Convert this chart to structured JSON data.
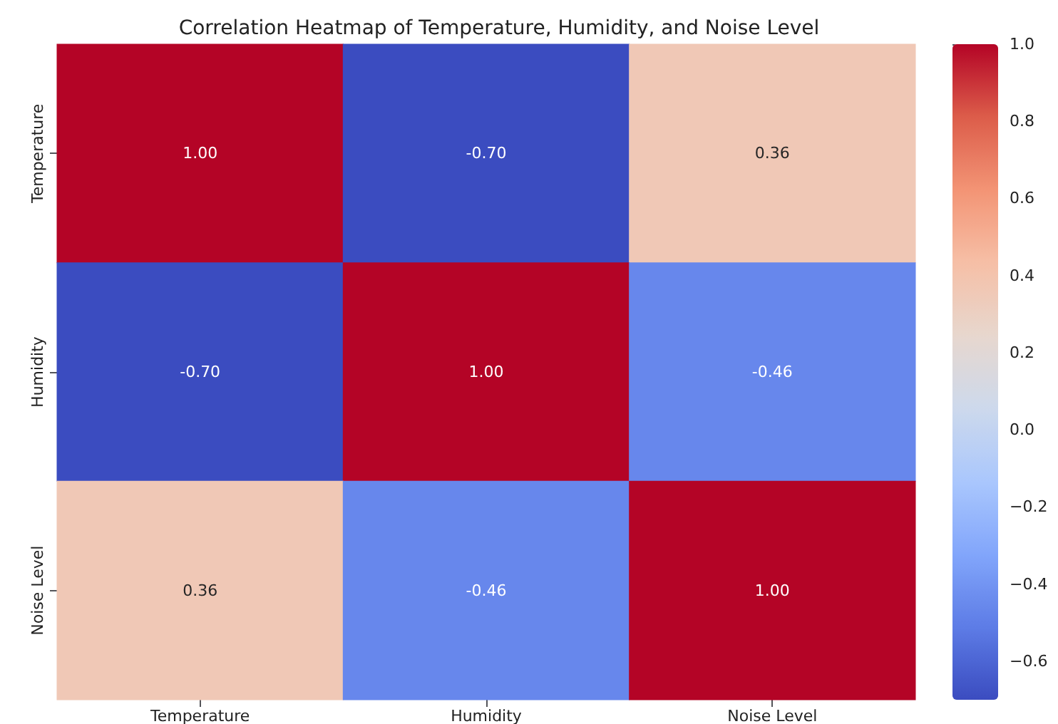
{
  "chart_data": {
    "type": "heatmap",
    "title": "Correlation Heatmap of Temperature, Humidity, and Noise Level",
    "categories": [
      "Temperature",
      "Humidity",
      "Noise Level"
    ],
    "y_categories": [
      "Temperature",
      "Humidity",
      "Noise Level"
    ],
    "cells": [
      [
        1.0,
        -0.7,
        0.36
      ],
      [
        -0.7,
        1.0,
        -0.46
      ],
      [
        0.36,
        -0.46,
        1.0
      ]
    ],
    "cell_labels": [
      [
        "1.00",
        "-0.70",
        "0.36"
      ],
      [
        "-0.70",
        "1.00",
        "-0.46"
      ],
      [
        "0.36",
        "-0.46",
        "1.00"
      ]
    ],
    "clim": [
      -0.7,
      1.0
    ],
    "cticks": [
      {
        "value": -0.6,
        "label": "−0.6"
      },
      {
        "value": -0.4,
        "label": "−0.4"
      },
      {
        "value": -0.2,
        "label": "−0.2"
      },
      {
        "value": 0.0,
        "label": "0.0"
      },
      {
        "value": 0.2,
        "label": "0.2"
      },
      {
        "value": 0.4,
        "label": "0.4"
      },
      {
        "value": 0.6,
        "label": "0.6"
      },
      {
        "value": 0.8,
        "label": "0.8"
      },
      {
        "value": 1.0,
        "label": "1.0"
      }
    ]
  }
}
